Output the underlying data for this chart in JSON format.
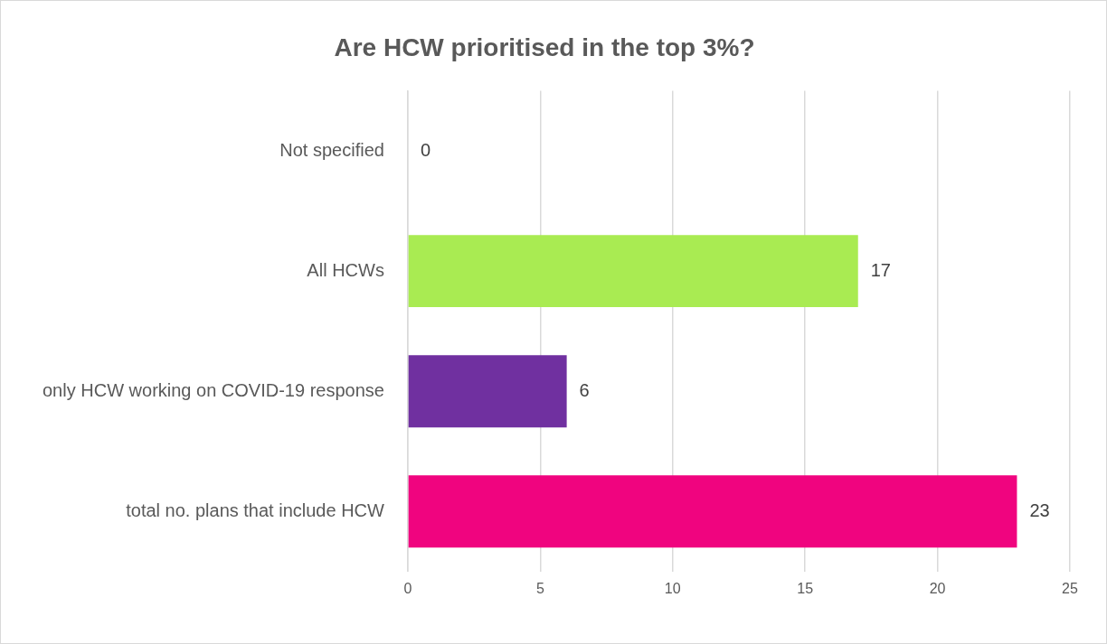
{
  "chart_data": {
    "type": "bar",
    "orientation": "horizontal",
    "title": "Are HCW prioritised in the top 3%?",
    "categories": [
      "Not specified",
      "All HCWs",
      "only HCW working on COVID-19 response",
      "total no. plans that include HCW"
    ],
    "values": [
      0,
      17,
      6,
      23
    ],
    "colors": [
      "#a5a5a5",
      "#a9eb52",
      "#7030a0",
      "#f0047f"
    ],
    "xlim": [
      0,
      25
    ],
    "xticks": [
      0,
      5,
      10,
      15,
      20,
      25
    ],
    "grid": "x",
    "data_labels": true,
    "legend": false
  }
}
